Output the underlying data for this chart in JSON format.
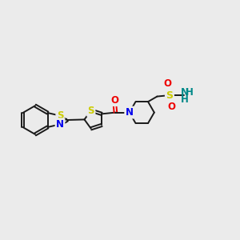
{
  "bg_color": "#ebebeb",
  "bond_color": "#1a1a1a",
  "S_color": "#cccc00",
  "N_color": "#0000ee",
  "O_color": "#ee0000",
  "NH_color": "#008888",
  "font_size": 8.5,
  "figsize": [
    3.0,
    3.0
  ],
  "dpi": 100,
  "xlim": [
    0,
    10
  ],
  "ylim": [
    2,
    8
  ]
}
